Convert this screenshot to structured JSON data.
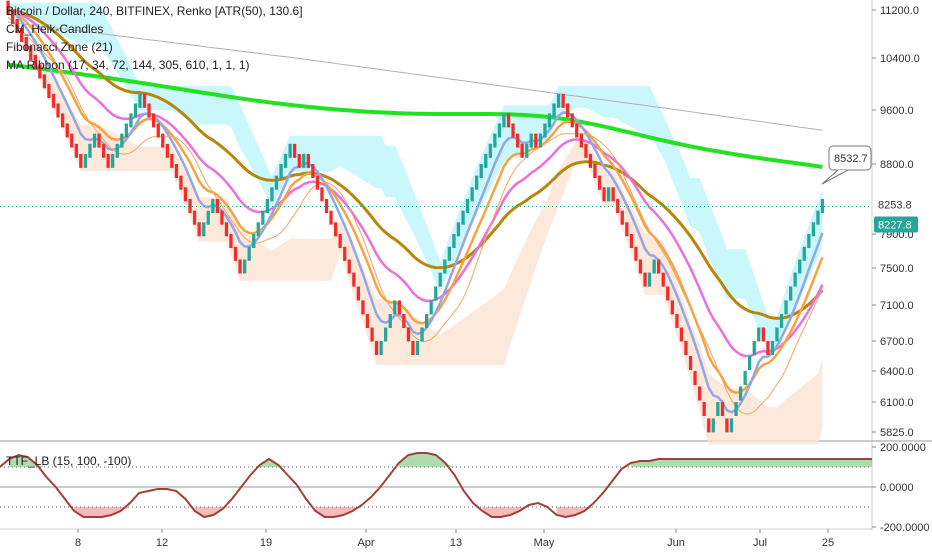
{
  "legend": {
    "title": "Bitcoin / Dollar, 240, BITFINEX, Renko [ATR(50), 130.6]",
    "indicator1": "CM_Heik-Candles",
    "indicator2": "Fibonacci Zone (21)",
    "indicator3": "MA Ribbon (17, 34, 72, 144, 305, 610, 1, 1, 1)"
  },
  "oscillator_label": "TTF_LB (15, 100, -100)",
  "colors": {
    "bull": "#26a69a",
    "bear": "#ef2d2d",
    "ma17": "#92a8e6",
    "ma34": "#f5a344",
    "ma72": "#ec6fe0",
    "ma144": "#b8860b",
    "ma305": "#21e121",
    "ma610": "#b0b0b0",
    "fib_upper": "#bff6fb",
    "fib_lower": "#fde3d3",
    "osc_line": "#a0403a",
    "osc_pos_fill": "#6cc06c",
    "osc_neg_fill": "#f08080"
  },
  "chart_data": [
    {
      "type": "renko",
      "title": "Bitcoin / Dollar, 240, BITFINEX, Renko [ATR(50), 130.6]",
      "y_axis_ticks": [
        "11200.0",
        "10400.0",
        "9600.0",
        "8800.0",
        "7900.0",
        "7500.0",
        "7100.0",
        "6700.0",
        "6400.0",
        "6100.0",
        "5825.0"
      ],
      "x_axis_ticks": [
        "8",
        "12",
        "19",
        "Apr",
        "13",
        "May",
        "Jun",
        "Jul",
        "25"
      ],
      "ylim": [
        5750,
        11350
      ],
      "price_labels": {
        "callout": "8532.7",
        "current_price": "8253.8",
        "ma_value": "8227.8"
      },
      "bricks": [
        11200,
        11050,
        10900,
        10750,
        10600,
        10450,
        10300,
        10150,
        10000,
        9850,
        9700,
        9550,
        9400,
        9250,
        9100,
        8950,
        8800,
        8950,
        9100,
        9250,
        9100,
        8950,
        8800,
        8950,
        9100,
        9250,
        9400,
        9550,
        9700,
        9850,
        9700,
        9550,
        9400,
        9250,
        9100,
        8950,
        8800,
        8650,
        8500,
        8350,
        8200,
        8050,
        7900,
        8050,
        8200,
        8350,
        8200,
        8050,
        7900,
        7750,
        7600,
        7450,
        7600,
        7750,
        7900,
        8050,
        8200,
        8350,
        8500,
        8650,
        8800,
        8950,
        9100,
        8950,
        8800,
        8950,
        8800,
        8650,
        8500,
        8350,
        8200,
        8050,
        7900,
        7750,
        7600,
        7450,
        7300,
        7150,
        7000,
        6850,
        6700,
        6550,
        6700,
        6850,
        7000,
        7150,
        7000,
        6850,
        6700,
        6550,
        6700,
        6850,
        7000,
        7150,
        7300,
        7450,
        7600,
        7750,
        7900,
        8050,
        8200,
        8350,
        8500,
        8650,
        8800,
        8950,
        9100,
        9250,
        9400,
        9550,
        9400,
        9250,
        9100,
        8950,
        9100,
        9250,
        9100,
        9250,
        9400,
        9550,
        9700,
        9850,
        9700,
        9550,
        9400,
        9250,
        9100,
        8950,
        8800,
        8650,
        8500,
        8350,
        8500,
        8350,
        8200,
        8050,
        7900,
        7750,
        7600,
        7450,
        7300,
        7450,
        7600,
        7450,
        7300,
        7150,
        7000,
        6850,
        6700,
        6550,
        6400,
        6250,
        6100,
        5950,
        5800,
        5950,
        6100,
        5950,
        5800,
        5950,
        6100,
        6250,
        6400,
        6550,
        6700,
        6850,
        6700,
        6550,
        6700,
        6850,
        7000,
        7150,
        7300,
        7450,
        7600,
        7750,
        7900,
        8050,
        8200,
        8350
      ],
      "moving_averages": [
        {
          "name": "MA 17",
          "period": 17
        },
        {
          "name": "MA 34",
          "period": 34
        },
        {
          "name": "MA 72",
          "period": 72
        },
        {
          "name": "MA 144",
          "period": 144
        },
        {
          "name": "MA 305",
          "period": 305
        },
        {
          "name": "MA 610",
          "period": 610
        }
      ]
    },
    {
      "type": "line",
      "title": "TTF_LB (15, 100, -100)",
      "y_axis_ticks": [
        "200.0000",
        "0.0000",
        "-200.0000"
      ],
      "ylim": [
        -240,
        240
      ],
      "reference_levels": [
        100,
        -100
      ],
      "x": [
        0,
        3,
        6,
        9,
        12,
        15,
        18,
        21,
        24,
        27,
        30,
        33,
        36,
        39,
        42,
        45,
        48,
        51,
        54,
        57,
        60,
        63,
        66,
        69,
        72,
        75,
        78,
        81,
        84,
        87,
        90,
        93,
        96,
        99,
        102,
        105,
        108,
        111,
        114,
        117,
        120,
        123,
        126,
        129,
        132,
        135,
        138,
        141,
        144,
        147,
        150,
        153,
        156,
        159,
        162,
        165,
        168,
        171,
        174,
        177,
        180,
        183,
        186,
        189,
        192,
        195,
        198,
        201,
        204,
        207,
        210,
        213,
        216,
        219,
        222,
        225,
        228,
        231,
        234,
        237,
        240,
        243,
        246,
        249,
        252,
        255,
        258,
        261,
        264,
        267,
        270,
        273,
        276,
        279,
        282
      ],
      "y": [
        100,
        140,
        160,
        150,
        110,
        50,
        0,
        -60,
        -120,
        -150,
        -150,
        -150,
        -140,
        -120,
        -80,
        -30,
        -20,
        -10,
        -10,
        -20,
        -60,
        -120,
        -150,
        -140,
        -110,
        -60,
        0,
        60,
        110,
        140,
        110,
        60,
        10,
        -60,
        -120,
        -150,
        -150,
        -140,
        -120,
        -90,
        -50,
        0,
        60,
        120,
        160,
        170,
        170,
        160,
        120,
        60,
        -20,
        -80,
        -120,
        -150,
        -150,
        -140,
        -120,
        -90,
        -80,
        -100,
        -140,
        -150,
        -140,
        -120,
        -80,
        -30,
        30,
        90,
        120,
        130,
        130,
        140,
        140,
        140,
        140,
        140,
        140,
        140,
        140,
        140,
        140,
        140,
        140,
        140,
        140,
        140,
        140,
        140,
        140,
        140,
        140,
        140,
        140,
        140,
        140
      ]
    }
  ]
}
